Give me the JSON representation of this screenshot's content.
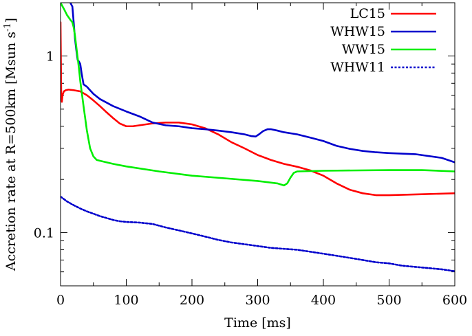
{
  "chart_data": {
    "type": "line",
    "title": "",
    "xlabel": "Time [ms]",
    "ylabel": "Accretion rate at R=500km [Msun s",
    "ylabel_superscript": "-1",
    "ylabel_suffix": "]",
    "xlim": [
      0,
      600
    ],
    "ylim": [
      0.05,
      2.0
    ],
    "yscale": "log",
    "xticks": [
      0,
      100,
      200,
      300,
      400,
      500,
      600
    ],
    "xtick_labels": [
      "0",
      "100",
      "200",
      "300",
      "400",
      "500",
      "600"
    ],
    "yticks_labeled": [
      0.1,
      1
    ],
    "ytick_labels": [
      "0.1",
      "1"
    ],
    "yticks_minor": [
      0.05,
      0.06,
      0.07,
      0.08,
      0.09,
      0.2,
      0.3,
      0.4,
      0.5,
      0.6,
      0.7,
      0.8,
      0.9,
      2.0
    ],
    "grid": false,
    "legend_position": "top-right",
    "series": [
      {
        "name": "LC15",
        "color": "#ff0000",
        "dash": "solid",
        "x": [
          0,
          1,
          2,
          3,
          5,
          8,
          12,
          20,
          30,
          40,
          50,
          60,
          70,
          80,
          90,
          100,
          110,
          120,
          140,
          160,
          180,
          200,
          220,
          240,
          260,
          280,
          300,
          320,
          340,
          360,
          380,
          400,
          420,
          440,
          460,
          480,
          500,
          550,
          600
        ],
        "y": [
          1.55,
          0.62,
          0.55,
          0.6,
          0.63,
          0.64,
          0.645,
          0.64,
          0.63,
          0.6,
          0.56,
          0.52,
          0.48,
          0.445,
          0.415,
          0.4,
          0.4,
          0.405,
          0.415,
          0.42,
          0.42,
          0.41,
          0.39,
          0.36,
          0.325,
          0.3,
          0.275,
          0.258,
          0.245,
          0.236,
          0.225,
          0.21,
          0.19,
          0.175,
          0.167,
          0.163,
          0.163,
          0.165,
          0.167
        ]
      },
      {
        "name": "WHW15",
        "color": "#0000cc",
        "dash": "solid",
        "x": [
          15,
          18,
          20,
          22,
          24,
          26,
          28,
          30,
          32,
          35,
          40,
          50,
          60,
          80,
          100,
          120,
          140,
          160,
          180,
          200,
          220,
          240,
          260,
          280,
          290,
          297,
          302,
          308,
          315,
          320,
          330,
          340,
          360,
          380,
          400,
          420,
          440,
          460,
          480,
          500,
          540,
          580,
          600
        ],
        "y": [
          2.0,
          1.9,
          1.55,
          1.25,
          1.08,
          0.95,
          0.93,
          0.9,
          0.8,
          0.69,
          0.67,
          0.61,
          0.57,
          0.52,
          0.485,
          0.455,
          0.42,
          0.405,
          0.4,
          0.39,
          0.385,
          0.378,
          0.37,
          0.36,
          0.352,
          0.35,
          0.36,
          0.375,
          0.385,
          0.385,
          0.378,
          0.37,
          0.36,
          0.345,
          0.33,
          0.31,
          0.298,
          0.29,
          0.285,
          0.282,
          0.278,
          0.265,
          0.25
        ]
      },
      {
        "name": "WW15",
        "color": "#00ee00",
        "dash": "solid",
        "x": [
          0,
          5,
          10,
          15,
          18,
          20,
          22,
          25,
          28,
          30,
          35,
          40,
          45,
          50,
          55,
          60,
          70,
          80,
          100,
          150,
          200,
          250,
          300,
          330,
          340,
          345,
          350,
          355,
          360,
          380,
          400,
          500,
          550,
          600
        ],
        "y": [
          2.0,
          1.85,
          1.7,
          1.6,
          1.55,
          1.45,
          1.3,
          1.05,
          0.85,
          0.72,
          0.52,
          0.38,
          0.3,
          0.27,
          0.258,
          0.255,
          0.25,
          0.245,
          0.237,
          0.222,
          0.21,
          0.203,
          0.196,
          0.19,
          0.185,
          0.19,
          0.205,
          0.218,
          0.222,
          0.223,
          0.224,
          0.226,
          0.226,
          0.222
        ]
      },
      {
        "name": "WHW11",
        "color": "#0000cc",
        "dash": "dotted",
        "x": [
          0,
          10,
          20,
          30,
          40,
          50,
          60,
          70,
          80,
          90,
          100,
          120,
          140,
          160,
          180,
          200,
          220,
          240,
          260,
          280,
          300,
          320,
          340,
          360,
          380,
          400,
          420,
          440,
          460,
          480,
          500,
          520,
          540,
          560,
          580,
          600
        ],
        "y": [
          0.16,
          0.15,
          0.143,
          0.137,
          0.132,
          0.128,
          0.124,
          0.121,
          0.118,
          0.116,
          0.115,
          0.114,
          0.112,
          0.107,
          0.103,
          0.099,
          0.095,
          0.091,
          0.088,
          0.086,
          0.084,
          0.082,
          0.081,
          0.08,
          0.078,
          0.076,
          0.074,
          0.072,
          0.07,
          0.068,
          0.067,
          0.065,
          0.064,
          0.063,
          0.062,
          0.0605
        ]
      }
    ]
  }
}
